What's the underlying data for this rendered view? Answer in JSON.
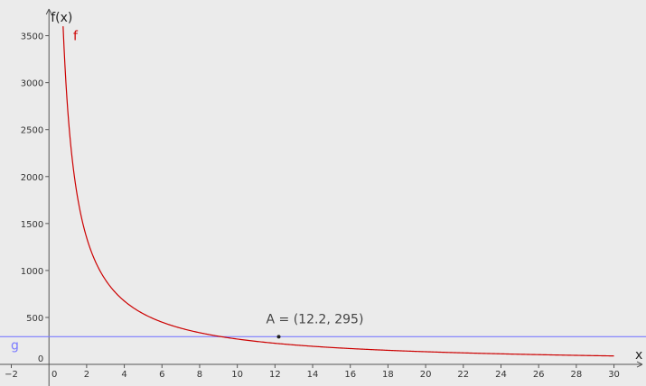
{
  "colors": {
    "background": "#ebebeb",
    "axis": "#555555",
    "curve_f": "#cc0000",
    "line_g": "#7b7bff",
    "point": "#222222"
  },
  "chart_data": {
    "type": "line",
    "title": "",
    "xlabel": "x",
    "ylabel": "f(x)",
    "xlim": [
      -2.6,
      31.7
    ],
    "ylim": [
      -230,
      3880
    ],
    "grid": false,
    "x_ticks": [
      -2,
      0,
      2,
      4,
      6,
      8,
      10,
      12,
      14,
      16,
      18,
      20,
      22,
      24,
      26,
      28,
      30
    ],
    "x_tick_labels": [
      "−2",
      "0",
      "2",
      "4",
      "6",
      "8",
      "10",
      "12",
      "14",
      "16",
      "18",
      "20",
      "22",
      "24",
      "26",
      "28",
      "30"
    ],
    "y_ticks": [
      0,
      500,
      1000,
      1500,
      2000,
      2500,
      3000,
      3500
    ],
    "y_tick_labels": [
      "0",
      "500",
      "1000",
      "1500",
      "2000",
      "2500",
      "3000",
      "3500"
    ],
    "series": [
      {
        "name": "f",
        "color": "#cc0000",
        "x": [
          0.75,
          0.8,
          0.9,
          1,
          1.25,
          1.5,
          1.75,
          2,
          2.5,
          3,
          3.5,
          4,
          5,
          6,
          7,
          8,
          9,
          10,
          11,
          12.2,
          13,
          14,
          15,
          16,
          18,
          20,
          22,
          24,
          26,
          28,
          30
        ],
        "y": [
          3600,
          3375,
          3000,
          2700,
          2160,
          1800,
          1543,
          1350,
          1080,
          900,
          771,
          675,
          540,
          450,
          386,
          338,
          300,
          270,
          245,
          295,
          277,
          257,
          240,
          225,
          200,
          180,
          164,
          150,
          138,
          129,
          120
        ]
      },
      {
        "name": "g",
        "color": "#7b7bff",
        "x": [
          -2.6,
          31.7
        ],
        "y": [
          295,
          295
        ]
      }
    ],
    "points": [
      {
        "name": "A",
        "x": 12.2,
        "y": 295,
        "label": "A = (12.2, 295)"
      }
    ]
  }
}
